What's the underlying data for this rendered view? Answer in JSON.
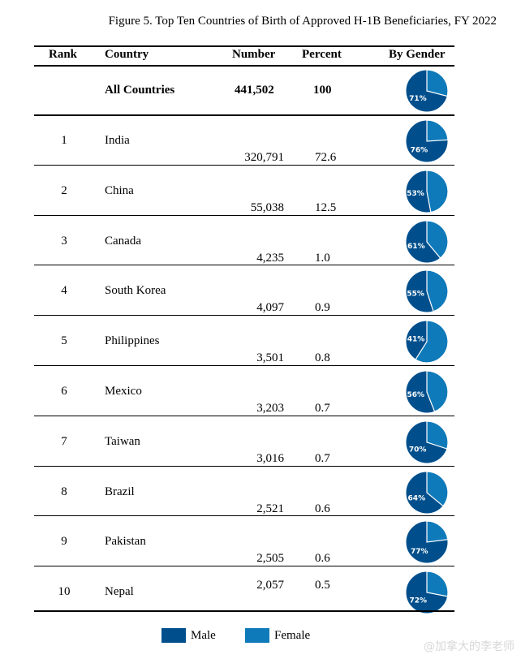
{
  "chart_data": {
    "type": "table",
    "title": "Figure 5. Top Ten Countries of Birth of Approved H-1B Beneficiaries, FY 2022",
    "columns": [
      "Rank",
      "Country",
      "Number",
      "Percent",
      "By Gender"
    ],
    "total": {
      "country": "All Countries",
      "number": "441,502",
      "percent": "100",
      "male_share": 71,
      "male_label": "71%"
    },
    "rows": [
      {
        "rank": "1",
        "country": "India",
        "number": "320,791",
        "percent": "72.6",
        "male_share": 76,
        "male_label": "76%"
      },
      {
        "rank": "2",
        "country": "China",
        "number": "55,038",
        "percent": "12.5",
        "male_share": 53,
        "male_label": "53%"
      },
      {
        "rank": "3",
        "country": "Canada",
        "number": "4,235",
        "percent": "1.0",
        "male_share": 61,
        "male_label": "61%"
      },
      {
        "rank": "4",
        "country": "South Korea",
        "number": "4,097",
        "percent": "0.9",
        "male_share": 55,
        "male_label": "55%"
      },
      {
        "rank": "5",
        "country": "Philippines",
        "number": "3,501",
        "percent": "0.8",
        "male_share": 41,
        "male_label": "41%"
      },
      {
        "rank": "6",
        "country": "Mexico",
        "number": "3,203",
        "percent": "0.7",
        "male_share": 56,
        "male_label": "56%"
      },
      {
        "rank": "7",
        "country": "Taiwan",
        "number": "3,016",
        "percent": "0.7",
        "male_share": 70,
        "male_label": "70%"
      },
      {
        "rank": "8",
        "country": "Brazil",
        "number": "2,521",
        "percent": "0.6",
        "male_share": 64,
        "male_label": "64%"
      },
      {
        "rank": "9",
        "country": "Pakistan",
        "number": "2,505",
        "percent": "0.6",
        "male_share": 77,
        "male_label": "77%"
      },
      {
        "rank": "10",
        "country": "Nepal",
        "number": "2,057",
        "percent": "0.5",
        "male_share": 72,
        "male_label": "72%"
      }
    ],
    "legend": [
      {
        "name": "Male",
        "color": "#004f8c"
      },
      {
        "name": "Female",
        "color": "#0f7ab9"
      }
    ],
    "colors": {
      "male": "#004f8c",
      "female": "#0f7ab9"
    }
  },
  "watermark": "@加拿大的李老师"
}
